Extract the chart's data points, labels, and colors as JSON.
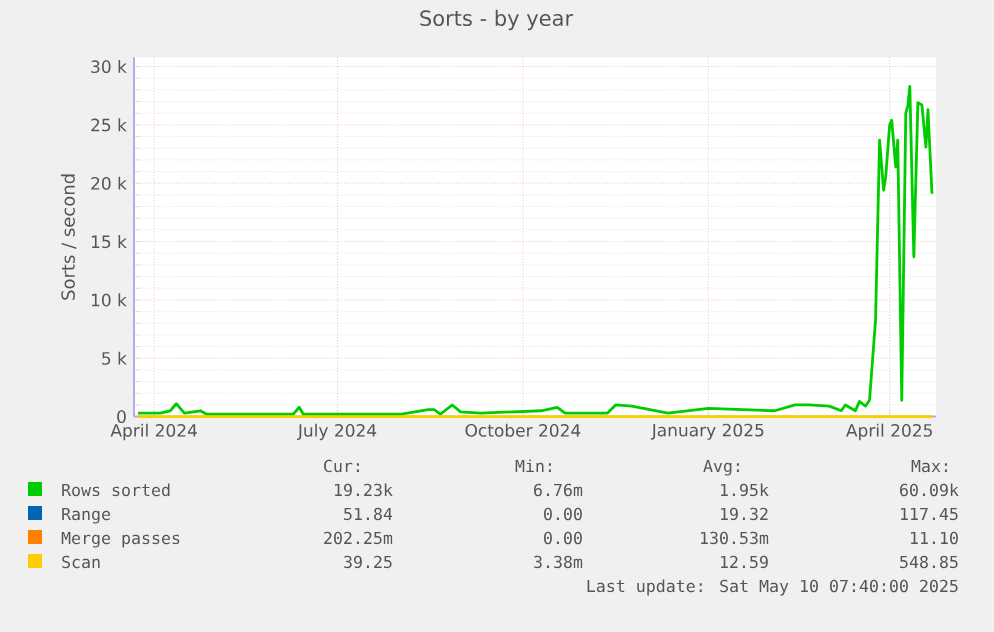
{
  "chart_data": {
    "type": "line",
    "title": "Sorts - by year",
    "ylabel": "Sorts / second",
    "xlim": [
      "2024-03-22",
      "2025-04-24"
    ],
    "xticks": [
      {
        "value": "2024-04-01",
        "label": "April 2024"
      },
      {
        "value": "2024-07-01",
        "label": "July 2024"
      },
      {
        "value": "2024-10-01",
        "label": "October 2024"
      },
      {
        "value": "2025-01-01",
        "label": "January 2025"
      },
      {
        "value": "2025-04-01",
        "label": "April 2025"
      }
    ],
    "ylim": [
      0,
      30800
    ],
    "yticks": [
      {
        "value": 0,
        "label": "0"
      },
      {
        "value": 5000,
        "label": "5 k"
      },
      {
        "value": 10000,
        "label": "10 k"
      },
      {
        "value": 15000,
        "label": "15 k"
      },
      {
        "value": 20000,
        "label": "20 k"
      },
      {
        "value": 25000,
        "label": "25 k"
      },
      {
        "value": 30000,
        "label": "30 k"
      }
    ],
    "grid": true,
    "legend": "bottom",
    "series": [
      {
        "name": "Rows sorted",
        "color": "#00cc00",
        "x": [
          "2024-03-24",
          "2024-04-04",
          "2024-04-09",
          "2024-04-12",
          "2024-04-16",
          "2024-04-24",
          "2024-04-27",
          "2024-06-09",
          "2024-06-12",
          "2024-06-14",
          "2024-08-01",
          "2024-08-15",
          "2024-08-18",
          "2024-08-21",
          "2024-08-27",
          "2024-08-31",
          "2024-09-10",
          "2024-10-10",
          "2024-10-18",
          "2024-10-22",
          "2024-11-12",
          "2024-11-16",
          "2024-11-24",
          "2024-12-12",
          "2025-01-01",
          "2025-02-03",
          "2025-02-13",
          "2025-02-20",
          "2025-03-02",
          "2025-03-08",
          "2025-03-10",
          "2025-03-15",
          "2025-03-17",
          "2025-03-20",
          "2025-03-22",
          "2025-03-25",
          "2025-03-27",
          "2025-03-29",
          "2025-03-30",
          "2025-04-01",
          "2025-04-02",
          "2025-04-04",
          "2025-04-05",
          "2025-04-07",
          "2025-04-09",
          "2025-04-10",
          "2025-04-11",
          "2025-04-13",
          "2025-04-15",
          "2025-04-17",
          "2025-04-19",
          "2025-04-20",
          "2025-04-22"
        ],
        "values": [
          300,
          300,
          500,
          1100,
          300,
          500,
          200,
          200,
          800,
          200,
          200,
          600,
          600,
          200,
          1000,
          400,
          300,
          500,
          800,
          300,
          300,
          1000,
          900,
          300,
          700,
          500,
          1000,
          1000,
          900,
          500,
          1000,
          500,
          1300,
          900,
          1400,
          8300,
          23700,
          19400,
          20500,
          25000,
          25400,
          21400,
          23700,
          1400,
          26000,
          26600,
          28300,
          13700,
          26900,
          26700,
          23100,
          26300,
          19100
        ]
      },
      {
        "name": "Range",
        "color": "#0066b3"
      },
      {
        "name": "Merge passes",
        "color": "#ff8000"
      },
      {
        "name": "Scan",
        "color": "#ffcc00",
        "x": [
          "2024-03-24",
          "2025-04-22"
        ],
        "values": [
          0,
          0
        ]
      }
    ],
    "annotations": [
      "Cur:",
      "Min:",
      "Avg:",
      "Max:",
      "19.23k",
      "6.76m",
      "1.95k",
      "60.09k",
      "51.84",
      "0.00",
      "19.32",
      "117.45",
      "202.25m",
      "0.00",
      "130.53m",
      "11.10",
      "39.25",
      "3.38m",
      "12.59",
      "548.85",
      "Last update: Sat May 10 07:40:00 2025"
    ]
  }
}
